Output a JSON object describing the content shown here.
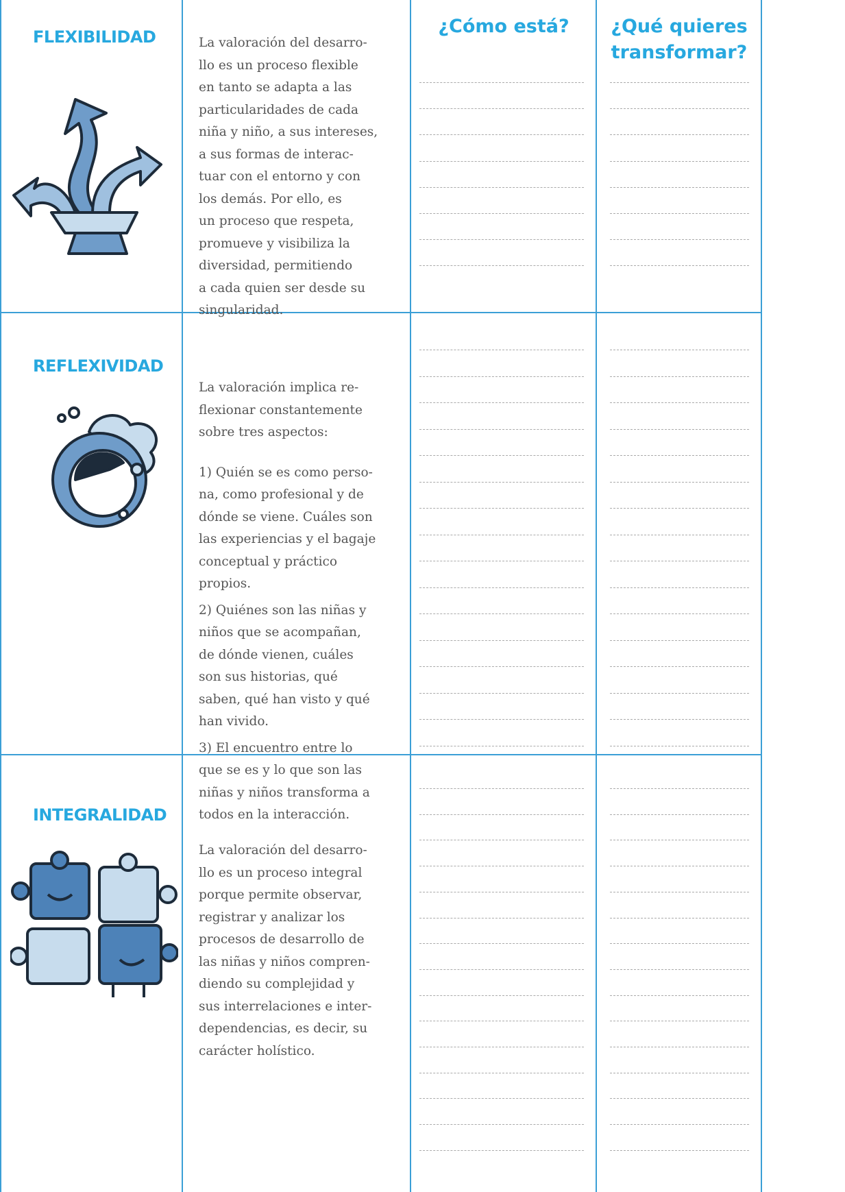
{
  "header": {
    "col3": [
      "¿Cómo está?"
    ],
    "col4": [
      "¿Qué quieres",
      "transformar?"
    ]
  },
  "rows": [
    {
      "title": "FLEXIBILIDAD",
      "paragraphs": [
        [
          "La valoración del desarro-",
          "llo es un proceso flexible",
          "en tanto se adapta a las",
          "particularidades de cada",
          "niña y niño, a sus intereses,",
          "a sus formas de interac-",
          "tuar con el entorno y con",
          "los demás. Por ello, es",
          "un proceso que respeta,",
          "promueve y visibiliza la",
          "diversidad, permitiendo",
          "a cada quien ser desde su",
          "singularidad."
        ]
      ]
    },
    {
      "title": "REFLEXIVIDAD",
      "paragraphs": [
        [
          "La valoración implica re-",
          "flexionar constantemente",
          "sobre tres aspectos:"
        ],
        [
          "1) Quién se es como perso-",
          "na, como profesional y de",
          "dónde se viene. Cuáles son",
          "las experiencias y el bagaje",
          "conceptual y práctico",
          "propios."
        ],
        [
          "2) Quiénes son las niñas y",
          "niños que se acompañan,",
          "de dónde vienen, cuáles",
          "son sus historias, qué",
          "saben, qué han visto y qué",
          "han vivido."
        ],
        [
          "3) El encuentro entre lo",
          "que se es y lo que son las",
          "niñas y niños transforma a",
          "todos en la interacción."
        ]
      ]
    },
    {
      "title": "INTEGRALIDAD",
      "paragraphs": [
        [
          "La valoración del desarro-",
          "llo es un proceso integral",
          "porque permite observar,",
          "registrar y analizar los",
          "procesos de desarrollo de",
          "las niñas y niños compren-",
          "diendo su complejidad y",
          "sus interrelaciones e inter-",
          "dependencias, es decir, su",
          "carácter holístico."
        ]
      ]
    }
  ]
}
